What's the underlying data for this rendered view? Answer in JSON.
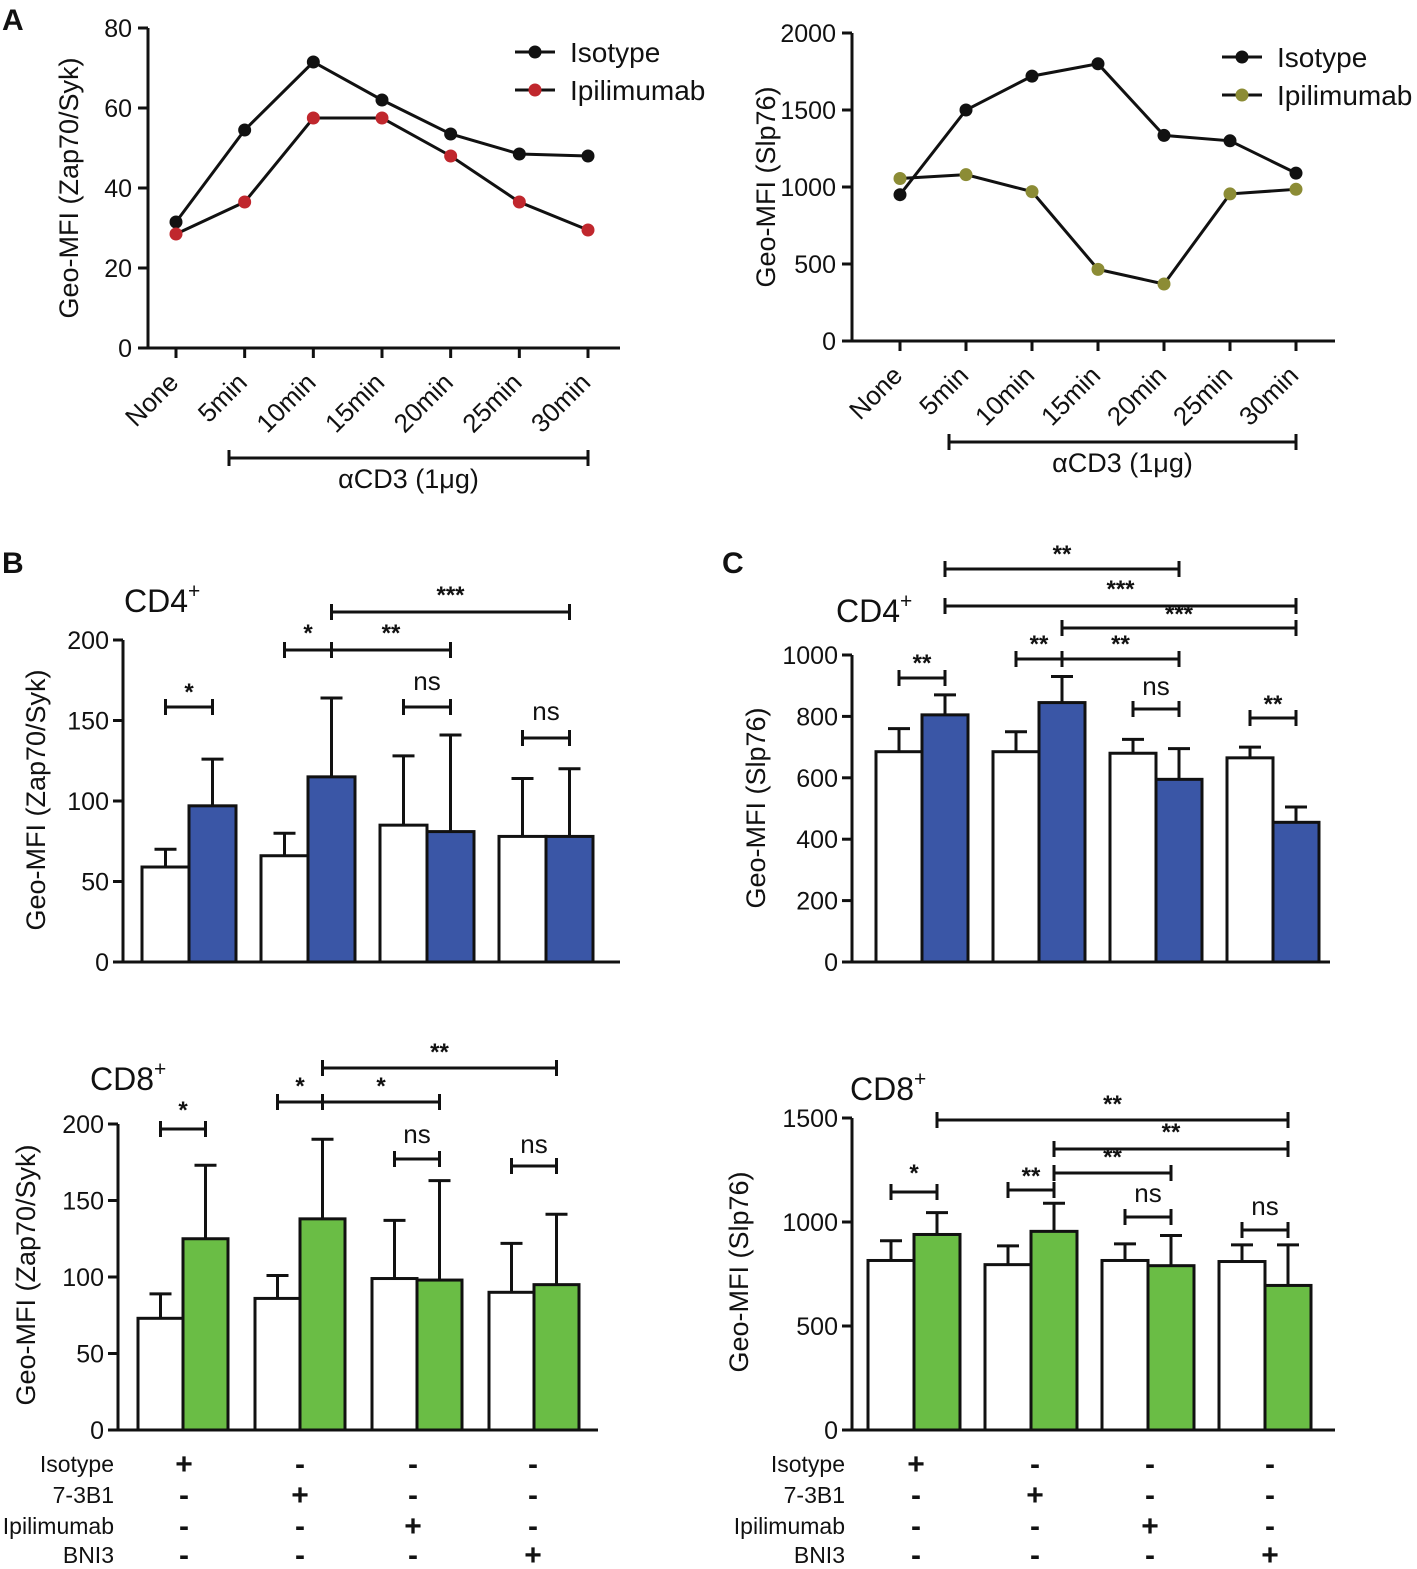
{
  "panel_letters": {
    "a": "A",
    "b": "B",
    "c": "C"
  },
  "chart_data": [
    {
      "id": "A1",
      "type": "line",
      "ylabel": "Geo-MFI (Zap70/Syk)",
      "xlabel": "αCD3 (1μg)",
      "categories": [
        "None",
        "5min",
        "10min",
        "15min",
        "20min",
        "25min",
        "30min"
      ],
      "ylim": [
        0,
        80
      ],
      "yticks": [
        0,
        20,
        40,
        60,
        80
      ],
      "series": [
        {
          "name": "Isotype",
          "color": "#111111",
          "values": [
            31.5,
            54.5,
            71.5,
            62,
            53.5,
            48.5,
            48
          ]
        },
        {
          "name": "Ipilimumab",
          "color": "#c0272d",
          "values": [
            28.5,
            36.5,
            57.5,
            57.5,
            48,
            36.5,
            29.5
          ]
        }
      ]
    },
    {
      "id": "A2",
      "type": "line",
      "ylabel": "Geo-MFI (Slp76)",
      "xlabel": "αCD3 (1μg)",
      "categories": [
        "None",
        "5min",
        "10min",
        "15min",
        "20min",
        "25min",
        "30min"
      ],
      "ylim": [
        0,
        2000
      ],
      "yticks": [
        0,
        500,
        1000,
        1500,
        2000
      ],
      "series": [
        {
          "name": "Isotype",
          "color": "#111111",
          "values": [
            950,
            1500,
            1720,
            1800,
            1335,
            1300,
            1090
          ]
        },
        {
          "name": "Ipilimumab",
          "color": "#8c8c35",
          "values": [
            1055,
            1080,
            970,
            465,
            370,
            955,
            985
          ]
        }
      ]
    },
    {
      "id": "B-CD4",
      "type": "bar",
      "title": "CD4",
      "title_sup": "+",
      "ylabel": "Geo-MFI (Zap70/Syk)",
      "ylim": [
        0,
        200
      ],
      "yticks": [
        0,
        50,
        100,
        150,
        200
      ],
      "colors": {
        "unstimulated": "#ffffff",
        "stimulated": "#3a56a6"
      },
      "groups": [
        {
          "unstim": 59,
          "unstim_err": 11,
          "stim": 97,
          "stim_err": 29
        },
        {
          "unstim": 66,
          "unstim_err": 14,
          "stim": 115,
          "stim_err": 49
        },
        {
          "unstim": 85,
          "unstim_err": 43,
          "stim": 81,
          "stim_err": 60
        },
        {
          "unstim": 78,
          "unstim_err": 36,
          "stim": 78,
          "stim_err": 42
        }
      ],
      "comparisons": [
        {
          "from": "g1u",
          "to": "g1s",
          "label": "*"
        },
        {
          "from": "g2u",
          "to": "g2s",
          "label": "*"
        },
        {
          "from": "g2s",
          "to": "g3s",
          "label": "**"
        },
        {
          "from": "g2s",
          "to": "g4s",
          "label": "***"
        },
        {
          "from": "g3u",
          "to": "g3s",
          "label": "ns"
        },
        {
          "from": "g4u",
          "to": "g4s",
          "label": "ns"
        }
      ]
    },
    {
      "id": "C-CD4",
      "type": "bar",
      "title": "CD4",
      "title_sup": "+",
      "ylabel": "Geo-MFI (Slp76)",
      "ylim": [
        0,
        1000
      ],
      "yticks": [
        0,
        200,
        400,
        600,
        800,
        1000
      ],
      "colors": {
        "unstimulated": "#ffffff",
        "stimulated": "#3a56a6"
      },
      "groups": [
        {
          "unstim": 685,
          "unstim_err": 75,
          "stim": 805,
          "stim_err": 65
        },
        {
          "unstim": 685,
          "unstim_err": 65,
          "stim": 845,
          "stim_err": 85
        },
        {
          "unstim": 680,
          "unstim_err": 45,
          "stim": 595,
          "stim_err": 100
        },
        {
          "unstim": 665,
          "unstim_err": 35,
          "stim": 455,
          "stim_err": 50
        }
      ],
      "comparisons": [
        {
          "from": "g1u",
          "to": "g1s",
          "label": "**"
        },
        {
          "from": "g2u",
          "to": "g2s",
          "label": "**"
        },
        {
          "from": "g2s",
          "to": "g3s",
          "label": "**"
        },
        {
          "from": "g3u",
          "to": "g3s",
          "label": "ns"
        },
        {
          "from": "g4u",
          "to": "g4s",
          "label": "**"
        },
        {
          "from": "g1s",
          "to": "g3s",
          "label": "**"
        },
        {
          "from": "g1s",
          "to": "g4s",
          "label": "***"
        },
        {
          "from": "g2s",
          "to": "g4s",
          "label": "***"
        }
      ]
    },
    {
      "id": "B-CD8",
      "type": "bar",
      "title": "CD8",
      "title_sup": "+",
      "ylabel": "Geo-MFI (Zap70/Syk)",
      "ylim": [
        0,
        200
      ],
      "yticks": [
        0,
        50,
        100,
        150,
        200
      ],
      "colors": {
        "unstimulated": "#ffffff",
        "stimulated": "#6abd45"
      },
      "groups": [
        {
          "unstim": 73,
          "unstim_err": 16,
          "stim": 125,
          "stim_err": 48
        },
        {
          "unstim": 86,
          "unstim_err": 15,
          "stim": 138,
          "stim_err": 52
        },
        {
          "unstim": 99,
          "unstim_err": 38,
          "stim": 98,
          "stim_err": 65
        },
        {
          "unstim": 90,
          "unstim_err": 32,
          "stim": 95,
          "stim_err": 46
        }
      ],
      "comparisons": [
        {
          "from": "g1u",
          "to": "g1s",
          "label": "*"
        },
        {
          "from": "g2u",
          "to": "g2s",
          "label": "*"
        },
        {
          "from": "g2s",
          "to": "g3s",
          "label": "*"
        },
        {
          "from": "g2s",
          "to": "g4s",
          "label": "**"
        },
        {
          "from": "g3u",
          "to": "g3s",
          "label": "ns"
        },
        {
          "from": "g4u",
          "to": "g4s",
          "label": "ns"
        }
      ]
    },
    {
      "id": "C-CD8",
      "type": "bar",
      "title": "CD8",
      "title_sup": "+",
      "ylabel": "Geo-MFI (Slp76)",
      "ylim": [
        0,
        1500
      ],
      "yticks": [
        0,
        500,
        1000,
        1500
      ],
      "colors": {
        "unstimulated": "#ffffff",
        "stimulated": "#6abd45"
      },
      "groups": [
        {
          "unstim": 815,
          "unstim_err": 95,
          "stim": 940,
          "stim_err": 105
        },
        {
          "unstim": 795,
          "unstim_err": 90,
          "stim": 955,
          "stim_err": 135
        },
        {
          "unstim": 815,
          "unstim_err": 80,
          "stim": 790,
          "stim_err": 145
        },
        {
          "unstim": 810,
          "unstim_err": 80,
          "stim": 695,
          "stim_err": 195
        }
      ],
      "comparisons": [
        {
          "from": "g1u",
          "to": "g1s",
          "label": "*"
        },
        {
          "from": "g2u",
          "to": "g2s",
          "label": "**"
        },
        {
          "from": "g3u",
          "to": "g3s",
          "label": "ns"
        },
        {
          "from": "g4u",
          "to": "g4s",
          "label": "ns"
        },
        {
          "from": "g2s",
          "to": "g3s",
          "label": "**"
        },
        {
          "from": "g2s",
          "to": "g4s",
          "label": "**"
        },
        {
          "from": "g1s",
          "to": "g4s",
          "label": "**"
        }
      ]
    }
  ],
  "treatment_table": {
    "rows": [
      {
        "label": "Isotype",
        "signs": [
          "+",
          "-",
          "-",
          "-"
        ]
      },
      {
        "label": "7-3B1",
        "signs": [
          "-",
          "+",
          "-",
          "-"
        ]
      },
      {
        "label": "Ipilimumab",
        "signs": [
          "-",
          "-",
          "+",
          "-"
        ]
      },
      {
        "label": "BNI3",
        "signs": [
          "-",
          "-",
          "-",
          "+"
        ]
      }
    ]
  }
}
